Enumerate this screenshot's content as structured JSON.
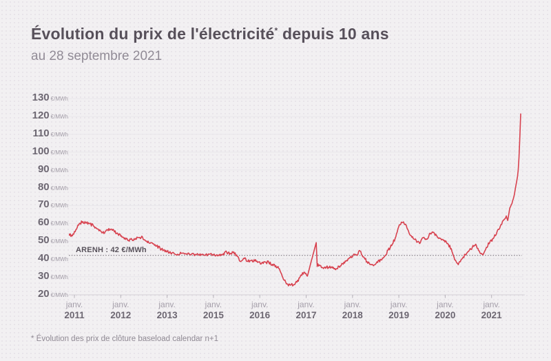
{
  "header": {
    "title_main": "Évolution du prix de l'électricité",
    "title_asterisk": "*",
    "title_suffix": " depuis 10 ans",
    "subtitle": "au 28 septembre 2021"
  },
  "footnote": "* Évolution des prix de clôture baseload calendar n+1",
  "chart_data": {
    "type": "line",
    "title": "Évolution du prix de l'électricité depuis 10 ans",
    "subtitle": "au 28 septembre 2021",
    "series_name": "Prix de clôture baseload calendar n+1 (€/MWh)",
    "unit": "€/MWh",
    "x_unit": "months_since_jan_2011",
    "ylim": [
      20,
      130
    ],
    "grid": true,
    "line_color": "#d7414e",
    "noise_amplitude": 0.85,
    "y_ticks": [
      130,
      120,
      110,
      100,
      90,
      80,
      70,
      60,
      50,
      40,
      30,
      20
    ],
    "x_tick_labels": [
      {
        "mon": "janv.",
        "yr": "2011"
      },
      {
        "mon": "janv.",
        "yr": "2012"
      },
      {
        "mon": "janv.",
        "yr": "2013"
      },
      {
        "mon": "janv.",
        "yr": "2015"
      },
      {
        "mon": "janv.",
        "yr": "2016"
      },
      {
        "mon": "janv.",
        "yr": "2017"
      },
      {
        "mon": "janv.",
        "yr": "2018"
      },
      {
        "mon": "janv.",
        "yr": "2019"
      },
      {
        "mon": "janv.",
        "yr": "2020"
      },
      {
        "mon": "janv.",
        "yr": "2021"
      }
    ],
    "annotation": {
      "label": "ARENH : 42 €/MWh",
      "value": 42
    },
    "points": [
      [
        0,
        54
      ],
      [
        1,
        53
      ],
      [
        2,
        56.5
      ],
      [
        3,
        60
      ],
      [
        4,
        61
      ],
      [
        5,
        60.2
      ],
      [
        6,
        59.8
      ],
      [
        7,
        58.5
      ],
      [
        8,
        57
      ],
      [
        9,
        55.8
      ],
      [
        10,
        54.3
      ],
      [
        11,
        56.5
      ],
      [
        12,
        56.8
      ],
      [
        13,
        55.2
      ],
      [
        14,
        54
      ],
      [
        15,
        53
      ],
      [
        16,
        51.8
      ],
      [
        17,
        50.4
      ],
      [
        18,
        50.8
      ],
      [
        19,
        51.5
      ],
      [
        20,
        52
      ],
      [
        21,
        52.3
      ],
      [
        22,
        50
      ],
      [
        23,
        48.8
      ],
      [
        24,
        48.5
      ],
      [
        25,
        47.3
      ],
      [
        26,
        46
      ],
      [
        27,
        45
      ],
      [
        28,
        44.2
      ],
      [
        29,
        43.5
      ],
      [
        30,
        43
      ],
      [
        31,
        42.7
      ],
      [
        32,
        43.2
      ],
      [
        33,
        42.8
      ],
      [
        34,
        43.4
      ],
      [
        35,
        42.9
      ],
      [
        36,
        42.6
      ],
      [
        37,
        42.3
      ],
      [
        38,
        42.6
      ],
      [
        39,
        42.4
      ],
      [
        40,
        42.7
      ],
      [
        41,
        42.4
      ],
      [
        42,
        42.2
      ],
      [
        43,
        42.6
      ],
      [
        44,
        43
      ],
      [
        45,
        43.8
      ],
      [
        46,
        43.2
      ],
      [
        47,
        44
      ],
      [
        48,
        41.5
      ],
      [
        49,
        38.6
      ],
      [
        50,
        40.2
      ],
      [
        51,
        38.6
      ],
      [
        52,
        39.2
      ],
      [
        53,
        38.9
      ],
      [
        54,
        38.3
      ],
      [
        55,
        37.8
      ],
      [
        56,
        38.3
      ],
      [
        57,
        38
      ],
      [
        58,
        37
      ],
      [
        59,
        36.2
      ],
      [
        60,
        34.5
      ],
      [
        61,
        29.5
      ],
      [
        62,
        26
      ],
      [
        63,
        25.5
      ],
      [
        64,
        25.4
      ],
      [
        65,
        27
      ],
      [
        66,
        30.4
      ],
      [
        67,
        32.5
      ],
      [
        68,
        30.4
      ],
      [
        69,
        38
      ],
      [
        70,
        45.4
      ],
      [
        70.5,
        49.2
      ],
      [
        70.8,
        35.8
      ],
      [
        71,
        37.3
      ],
      [
        72,
        35.2
      ],
      [
        73,
        35.5
      ],
      [
        74,
        35.3
      ],
      [
        75,
        35.7
      ],
      [
        76,
        34
      ],
      [
        77,
        35.8
      ],
      [
        78,
        37.5
      ],
      [
        79,
        38.8
      ],
      [
        80,
        40.8
      ],
      [
        81,
        41.8
      ],
      [
        82,
        42.2
      ],
      [
        83,
        44.5
      ],
      [
        84,
        41.2
      ],
      [
        85,
        38.5
      ],
      [
        86,
        37
      ],
      [
        87,
        36.6
      ],
      [
        88,
        38
      ],
      [
        89,
        39.5
      ],
      [
        90,
        41.5
      ],
      [
        91,
        45
      ],
      [
        92,
        47.5
      ],
      [
        93,
        51.5
      ],
      [
        94,
        58
      ],
      [
        95,
        60.5
      ],
      [
        96,
        59.5
      ],
      [
        97,
        54.5
      ],
      [
        98,
        52.5
      ],
      [
        99,
        50.5
      ],
      [
        100,
        48.7
      ],
      [
        101,
        52
      ],
      [
        102,
        51
      ],
      [
        103,
        54.5
      ],
      [
        104,
        55
      ],
      [
        105,
        52.5
      ],
      [
        106,
        51.5
      ],
      [
        107,
        50.5
      ],
      [
        108,
        48.7
      ],
      [
        109,
        45.8
      ],
      [
        110,
        39.5
      ],
      [
        111,
        36.8
      ],
      [
        112,
        39.9
      ],
      [
        113,
        42.5
      ],
      [
        114,
        44.4
      ],
      [
        115,
        46.5
      ],
      [
        116,
        48.3
      ],
      [
        117,
        44.5
      ],
      [
        118,
        42.3
      ],
      [
        119,
        46.5
      ],
      [
        120,
        49.5
      ],
      [
        121,
        51.5
      ],
      [
        122,
        55
      ],
      [
        123,
        58.5
      ],
      [
        124,
        62
      ],
      [
        124.7,
        64.2
      ],
      [
        125.1,
        61.6
      ],
      [
        125.7,
        68.7
      ],
      [
        126.3,
        71.1
      ],
      [
        126.7,
        73.8
      ],
      [
        127,
        76.1
      ],
      [
        127.3,
        79.9
      ],
      [
        127.6,
        83
      ],
      [
        127.9,
        86.4
      ],
      [
        128.1,
        90
      ],
      [
        128.3,
        96.8
      ],
      [
        128.5,
        105.8
      ],
      [
        128.65,
        113
      ],
      [
        128.8,
        121.5
      ]
    ]
  }
}
